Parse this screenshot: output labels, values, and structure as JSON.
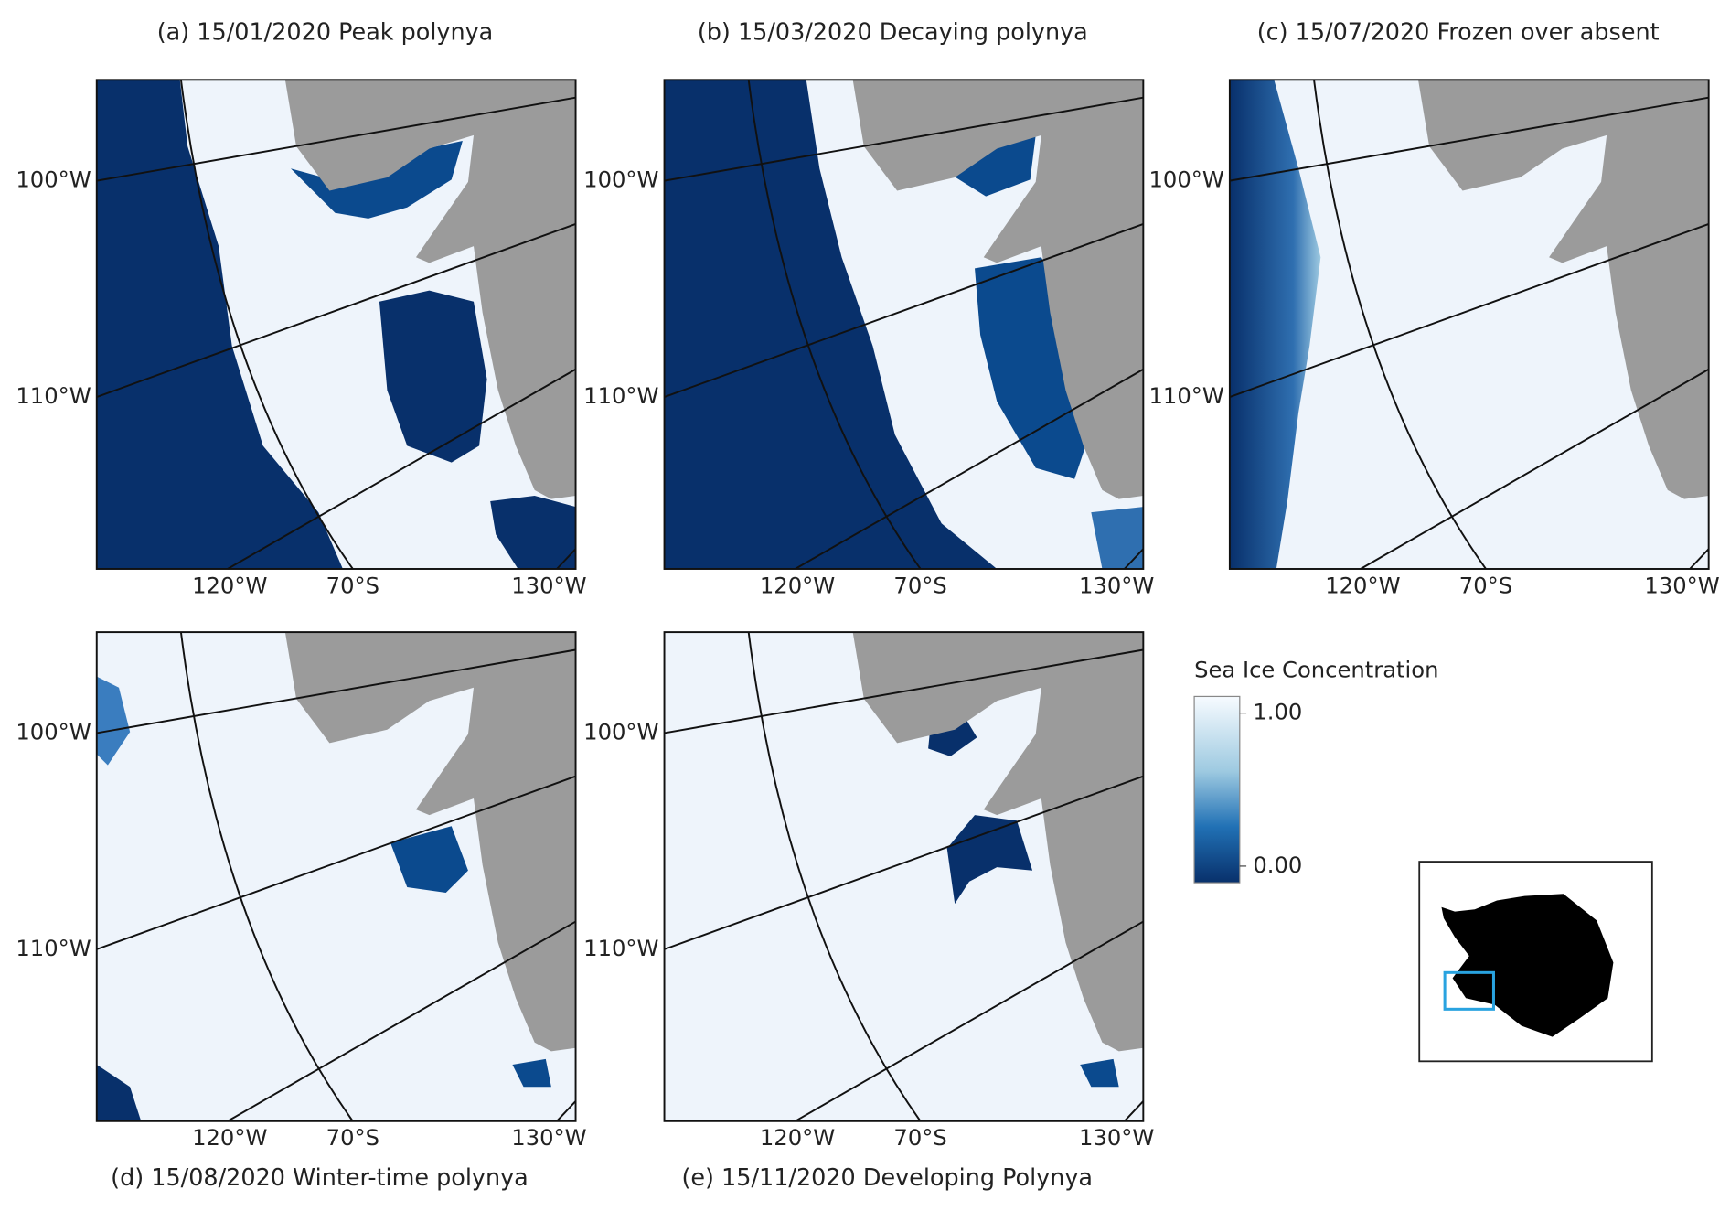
{
  "panels": [
    {
      "title": "(a) 15/01/2020 Peak polynya"
    },
    {
      "title": "(b) 15/03/2020 Decaying polynya"
    },
    {
      "title": "(c) 15/07/2020 Frozen over absent"
    },
    {
      "title": "(d) 15/08/2020 Winter-time polynya"
    },
    {
      "title": "(e) 15/11/2020 Developing Polynya"
    }
  ],
  "graticule_labels": {
    "left": [
      "100°W",
      "110°W"
    ],
    "bottom": [
      "120°W",
      "70°S",
      "130°W"
    ]
  },
  "colorbar": {
    "title": "Sea Ice Concentration",
    "ticks": [
      {
        "value": 1,
        "label": "1.00"
      },
      {
        "value": 0,
        "label": "0.00"
      }
    ]
  }
}
